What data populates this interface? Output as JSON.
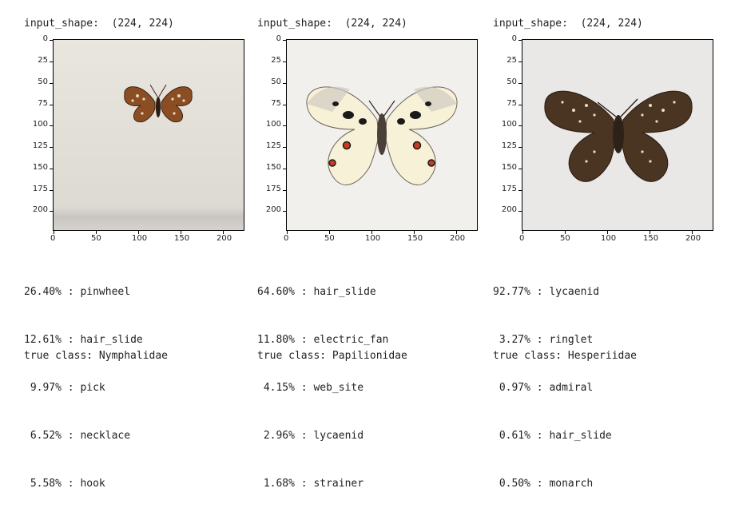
{
  "panels": [
    {
      "input_shape_label": "input_shape:",
      "input_shape_value": "(224, 224)",
      "predictions": [
        {
          "pct": "26.40%",
          "label": "pinwheel"
        },
        {
          "pct": "12.61%",
          "label": "hair_slide"
        },
        {
          "pct": " 9.97%",
          "label": "pick"
        },
        {
          "pct": " 6.52%",
          "label": "necklace"
        },
        {
          "pct": " 5.58%",
          "label": "hook"
        }
      ],
      "true_class": "true class: Nymphalidae",
      "image": "small brown orange checkered butterfly on light background"
    },
    {
      "input_shape_label": "input_shape:",
      "input_shape_value": "(224, 224)",
      "predictions": [
        {
          "pct": "64.60%",
          "label": "hair_slide"
        },
        {
          "pct": "11.80%",
          "label": "electric_fan"
        },
        {
          "pct": " 4.15%",
          "label": "web_site"
        },
        {
          "pct": " 2.96%",
          "label": "lycaenid"
        },
        {
          "pct": " 1.68%",
          "label": "strainer"
        }
      ],
      "true_class": "true class: Papilionidae",
      "image": "large cream white apollo butterfly with red spots"
    },
    {
      "input_shape_label": "input_shape:",
      "input_shape_value": "(224, 224)",
      "predictions": [
        {
          "pct": "92.77%",
          "label": "lycaenid"
        },
        {
          "pct": " 3.27%",
          "label": "ringlet"
        },
        {
          "pct": " 0.97%",
          "label": "admiral"
        },
        {
          "pct": " 0.61%",
          "label": "hair_slide"
        },
        {
          "pct": " 0.50%",
          "label": "monarch"
        }
      ],
      "true_class": "true class: Hesperiidae",
      "image": "dark brown skipper butterfly with white spots"
    }
  ],
  "axes": {
    "yticks": [
      "0",
      "25",
      "50",
      "75",
      "100",
      "125",
      "150",
      "175",
      "200"
    ],
    "xticks": [
      "0",
      "50",
      "100",
      "150",
      "200"
    ]
  }
}
